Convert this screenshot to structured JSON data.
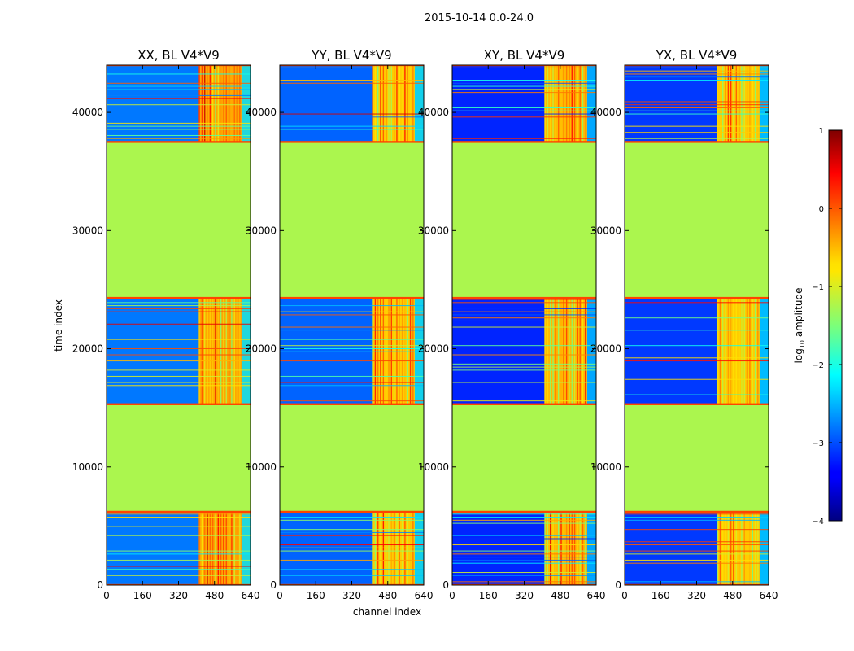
{
  "chart_data": {
    "type": "heatmap",
    "suptitle": "2015-10-14 0.0-24.0",
    "xlabel": "channel index",
    "ylabel": "time index",
    "xlim": [
      0,
      640
    ],
    "ylim": [
      0,
      44000
    ],
    "xticks": [
      0,
      160,
      320,
      480,
      640
    ],
    "yticks": [
      0,
      10000,
      20000,
      30000,
      40000
    ],
    "flagged_value": -1.25,
    "flagged_time_ranges": [
      [
        6200,
        15300
      ],
      [
        24300,
        37500
      ]
    ],
    "data_time_ranges": [
      [
        0,
        6200
      ],
      [
        15300,
        24300
      ],
      [
        37500,
        44000
      ]
    ],
    "rfi_channel_range": [
      410,
      600
    ],
    "panels": [
      {
        "title": "XX, BL V4*V9",
        "background_log_amplitude": -2.8,
        "rfi_log_amplitude": -0.4
      },
      {
        "title": "YY, BL V4*V9",
        "background_log_amplitude": -2.9,
        "rfi_log_amplitude": -0.6
      },
      {
        "title": "XY, BL V4*V9",
        "background_log_amplitude": -3.2,
        "rfi_log_amplitude": -0.5
      },
      {
        "title": "YX, BL V4*V9",
        "background_log_amplitude": -3.1,
        "rfi_log_amplitude": -0.6
      }
    ],
    "colorbar": {
      "label_prefix": "log",
      "label_sub": "10",
      "label_suffix": " amplitude",
      "colormap": "jet",
      "range": [
        -4,
        1
      ],
      "ticks": [
        1,
        0,
        -1,
        -2,
        -3,
        -4
      ],
      "tick_labels": [
        "1",
        "0",
        "−1",
        "−2",
        "−3",
        "−4"
      ]
    }
  }
}
